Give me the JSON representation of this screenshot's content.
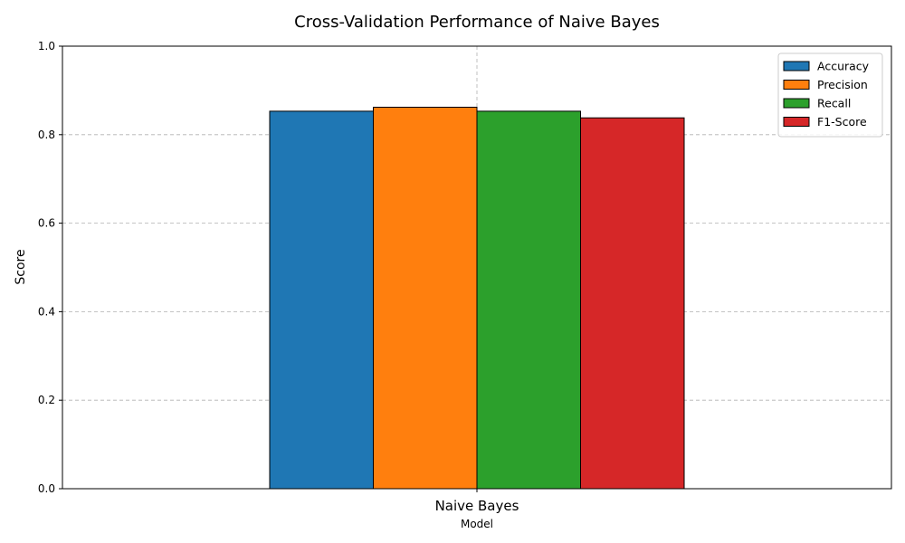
{
  "chart_data": {
    "type": "bar",
    "title": "Cross-Validation Performance of Naive Bayes",
    "xlabel": "Model",
    "ylabel": "Score",
    "categories": [
      "Naive Bayes"
    ],
    "ylim": [
      0,
      1
    ],
    "yticks": [
      "0.0",
      "0.2",
      "0.4",
      "0.6",
      "0.8",
      "1.0"
    ],
    "grid": true,
    "legend_position": "top-right",
    "series": [
      {
        "name": "Accuracy",
        "values": [
          0.853
        ],
        "color": "#1f77b4"
      },
      {
        "name": "Precision",
        "values": [
          0.862
        ],
        "color": "#ff7f0e"
      },
      {
        "name": "Recall",
        "values": [
          0.853
        ],
        "color": "#2ca02c"
      },
      {
        "name": "F1-Score",
        "values": [
          0.838
        ],
        "color": "#d62728"
      }
    ]
  }
}
